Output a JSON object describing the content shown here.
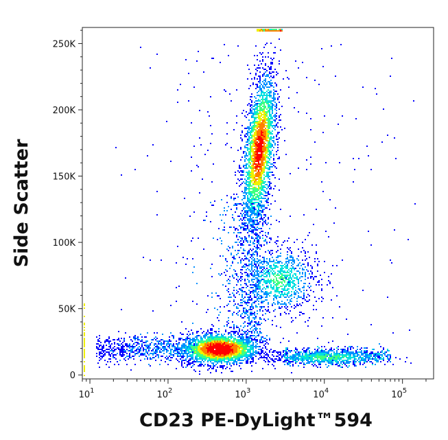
{
  "chart_data": {
    "type": "scatter",
    "subtype": "flow-cytometry-density-dot-plot",
    "xlabel": "CD23 PE-DyLight™594",
    "ylabel": "Side Scatter",
    "x_scale": "log",
    "xlim": [
      8,
      250000
    ],
    "ylim": [
      -3000,
      262144
    ],
    "x_ticks": [
      {
        "value": 10,
        "base": "10",
        "exp": "1"
      },
      {
        "value": 100,
        "base": "10",
        "exp": "2"
      },
      {
        "value": 1000,
        "base": "10",
        "exp": "3"
      },
      {
        "value": 10000,
        "base": "10",
        "exp": "4"
      },
      {
        "value": 100000,
        "base": "10",
        "exp": "5"
      }
    ],
    "y_ticks": [
      {
        "value": 0,
        "label": "0"
      },
      {
        "value": 50000,
        "label": "50K"
      },
      {
        "value": 100000,
        "label": "100K"
      },
      {
        "value": 150000,
        "label": "150K"
      },
      {
        "value": 200000,
        "label": "200K"
      },
      {
        "value": 250000,
        "label": "250K"
      }
    ],
    "grid": false,
    "legend": "none",
    "color_scale": [
      "#0000ff",
      "#0090ff",
      "#00e0e0",
      "#40ff80",
      "#f0f000",
      "#ff8000",
      "#ff0000"
    ],
    "populations": [
      {
        "x_center": 450,
        "y_center": 20000,
        "peak_density": 1.0
      },
      {
        "x_center": 1450,
        "y_center": 170000,
        "peak_density": 0.9
      },
      {
        "x_center": 2600,
        "y_center": 72000,
        "peak_density": 0.45
      },
      {
        "x_center": 11000,
        "y_center": 14000,
        "peak_density": 0.45
      }
    ]
  }
}
